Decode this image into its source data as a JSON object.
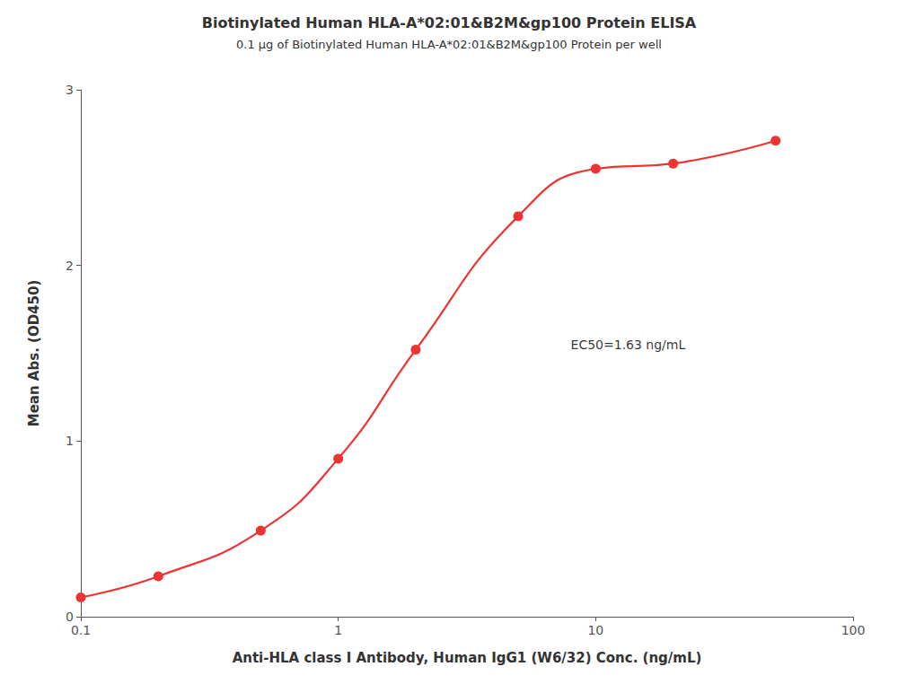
{
  "chart_data": {
    "type": "line",
    "title": "Biotinylated Human HLA-A*02:01&B2M&gp100 Protein ELISA",
    "subtitle": "0.1 μg of Biotinylated Human HLA-A*02:01&B2M&gp100 Protein per well",
    "xlabel": "Anti-HLA class I Antibody, Human IgG1 (W6/32) Conc. (ng/mL)",
    "ylabel": "Mean Abs. (OD450)",
    "x": [
      0.1,
      0.2,
      0.5,
      1.0,
      2.0,
      5.0,
      10.0,
      20.0,
      50.0
    ],
    "values": [
      0.11,
      0.23,
      0.49,
      0.9,
      1.52,
      2.28,
      2.55,
      2.58,
      2.71
    ],
    "color": "#EE3333",
    "marker": "o",
    "line_style": "solid",
    "log": "x",
    "xlim": [
      0.1,
      100
    ],
    "xticks": [
      0.1,
      1,
      10,
      100
    ],
    "ylim": [
      0,
      3
    ],
    "yticks": [
      0,
      1,
      2,
      3
    ],
    "grid": false,
    "annotations": [
      {
        "text": "EC50=1.63 ng/mL",
        "x": 8.0,
        "y": 1.55
      }
    ]
  }
}
